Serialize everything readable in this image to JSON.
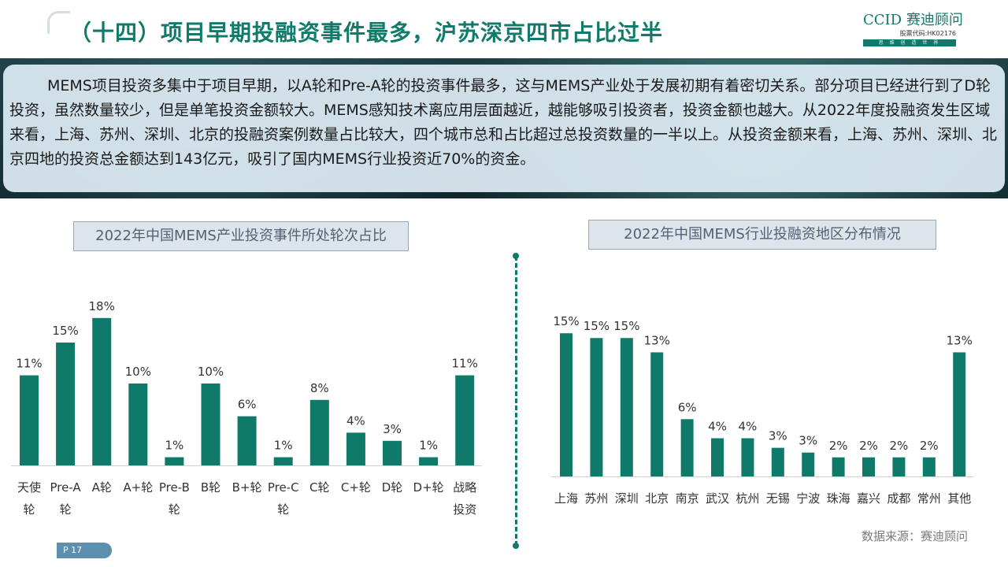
{
  "header": {
    "title": "（十四）项目早期投融资事件最多，沪苏深京四市占比过半",
    "logo": {
      "brand": "CCID",
      "brand_cn": "赛迪顾问",
      "stock_code": "股票代码:HK02176",
      "tagline": "思 维 创 造 世 界"
    }
  },
  "summary": "MEMS项目投资多集中于项目早期，以A轮和Pre-A轮的投资事件最多，这与MEMS产业处于发展初期有着密切关系。部分项目已经进行到了D轮投资，虽然数量较少，但是单笔投资金额较大。MEMS感知技术离应用层面越近，越能够吸引投资者，投资金额也越大。从2022年度投融资发生区域来看，上海、苏州、深圳、北京的投融资案例数量占比较大，四个城市总和占比超过总投资数量的一半以上。从投资金额来看，上海、苏州、深圳、北京四地的投资总金额达到143亿元，吸引了国内MEMS行业投资近70%的资金。",
  "colors": {
    "accent": "#0f7a69",
    "title": "#107a6b",
    "badge": "#5d8fb1"
  },
  "chart_data": [
    {
      "type": "bar",
      "title": "2022年中国MEMS产业投资事件所处轮次占比",
      "categories": [
        [
          "天使",
          "轮"
        ],
        [
          "Pre-A",
          "轮"
        ],
        [
          "A轮"
        ],
        [
          "A+轮"
        ],
        [
          "Pre-B",
          "轮"
        ],
        [
          "B轮"
        ],
        [
          "B+轮"
        ],
        [
          "Pre-C",
          "轮"
        ],
        [
          "C轮"
        ],
        [
          "C+轮"
        ],
        [
          "D轮"
        ],
        [
          "D+轮"
        ],
        [
          "战略",
          "投资"
        ]
      ],
      "values": [
        11,
        15,
        18,
        10,
        1,
        10,
        6,
        1,
        8,
        4,
        3,
        1,
        11
      ],
      "value_labels": [
        "11%",
        "15%",
        "18%",
        "10%",
        "1%",
        "10%",
        "6%",
        "1%",
        "8%",
        "4%",
        "3%",
        "1%",
        "11%"
      ],
      "unit": "%",
      "ylim": [
        0,
        20
      ],
      "grid": false,
      "color": "#0f7a69"
    },
    {
      "type": "bar",
      "title": "2022年中国MEMS行业投融资地区分布情况",
      "categories": [
        [
          "上海"
        ],
        [
          "苏州"
        ],
        [
          "深圳"
        ],
        [
          "北京"
        ],
        [
          "南京"
        ],
        [
          "武汉"
        ],
        [
          "杭州"
        ],
        [
          "无锡"
        ],
        [
          "宁波"
        ],
        [
          "珠海"
        ],
        [
          "嘉兴"
        ],
        [
          "成都"
        ],
        [
          "常州"
        ],
        [
          "其他"
        ]
      ],
      "values": [
        15,
        14.5,
        14.5,
        13,
        6,
        4,
        4,
        3,
        2.5,
        2,
        2,
        2,
        2,
        13
      ],
      "value_labels": [
        "15%",
        "15%",
        "15%",
        "13%",
        "6%",
        "4%",
        "4%",
        "3%",
        "3%",
        "2%",
        "2%",
        "2%",
        "2%",
        "13%"
      ],
      "unit": "%",
      "ylim": [
        0,
        16.5
      ],
      "grid": false,
      "color": "#0f7a69"
    }
  ],
  "source": "数据来源：赛迪顾问",
  "page": "P 17"
}
